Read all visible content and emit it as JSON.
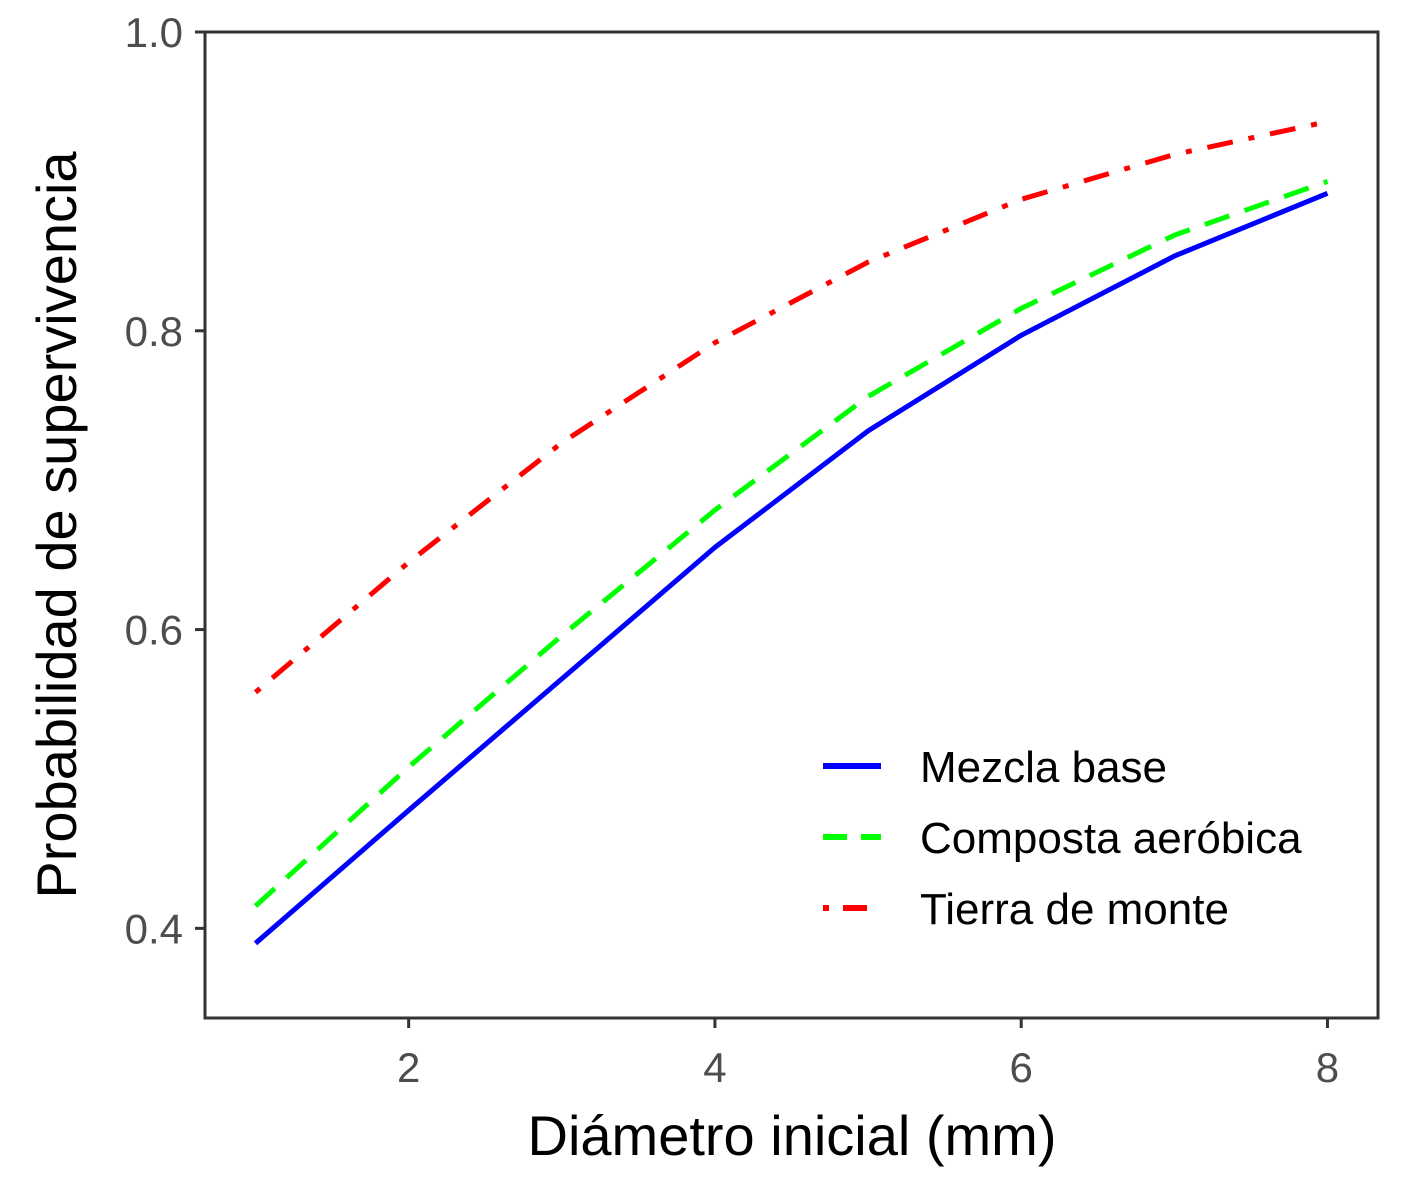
{
  "chart_data": {
    "type": "line",
    "xlabel": "Diámetro inicial (mm)",
    "ylabel": "Probabilidad de supervivencia",
    "xlim": [
      0.67,
      8.33
    ],
    "ylim": [
      0.34,
      1.0
    ],
    "xticks": [
      2,
      4,
      6,
      8
    ],
    "xtick_labels": [
      "2",
      "4",
      "6",
      "8"
    ],
    "yticks": [
      0.4,
      0.6,
      0.8,
      1.0
    ],
    "ytick_labels": [
      "0.4",
      "0.6",
      "0.8",
      "1.0"
    ],
    "grid": false,
    "legend_position": "bottom-right",
    "x": [
      1,
      2,
      3,
      4,
      5,
      6,
      7,
      8
    ],
    "series": [
      {
        "name": "Mezcla base",
        "color": "#0000ff",
        "dash": "solid",
        "values": [
          0.39,
          0.479,
          0.567,
          0.655,
          0.733,
          0.797,
          0.85,
          0.892
        ]
      },
      {
        "name": "Composta aeróbica",
        "color": "#00ff00",
        "dash": "dashed",
        "values": [
          0.415,
          0.508,
          0.596,
          0.68,
          0.756,
          0.815,
          0.864,
          0.9
        ]
      },
      {
        "name": "Tierra de monte",
        "color": "#ff0000",
        "dash": "dotdash",
        "values": [
          0.558,
          0.645,
          0.725,
          0.792,
          0.846,
          0.888,
          0.918,
          0.94
        ]
      }
    ]
  }
}
